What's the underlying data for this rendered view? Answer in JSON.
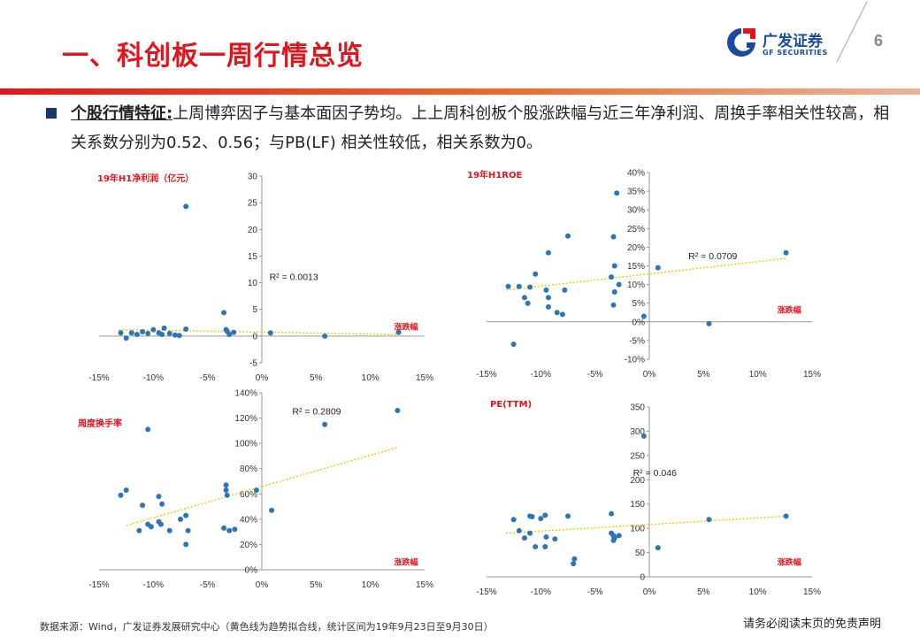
{
  "header": {
    "title": "一、科创板一周行情总览",
    "logo_name": "广发证券",
    "logo_en": "GF SECURITIES",
    "page_number": "6"
  },
  "body": {
    "highlight": "个股行情特征:",
    "text": "上周博弈因子与基本面因子势均。上上周科创板个股涨跌幅与近三年净利润、周换手率相关性较高，相关系数分别为0.52、0.56；与PB(LF) 相关性较低，相关系数为0。"
  },
  "colors": {
    "point": "#2e75b6",
    "trend": "#f2c80f",
    "label": "#e0161e",
    "brand": "#1b4a9a"
  },
  "chart_data": [
    {
      "type": "scatter",
      "title": "19年H1净利润（亿元）",
      "xlabel": "涨跌幅",
      "xlim": [
        -15,
        15
      ],
      "ylim": [
        -5,
        30
      ],
      "xticks": [
        -15,
        -10,
        -5,
        0,
        5,
        10,
        15
      ],
      "xtick_labels": [
        "-15%",
        "-10%",
        "-5%",
        "0%",
        "5%",
        "10%",
        "15%"
      ],
      "yticks": [
        -5,
        0,
        5,
        10,
        15,
        20,
        25,
        30
      ],
      "ytick_labels": [
        "-5",
        "0",
        "5",
        "10",
        "15",
        "20",
        "25",
        "30"
      ],
      "annotation": "R² = 0.0013",
      "trend": [
        [
          -13.2,
          1.2
        ],
        [
          12.6,
          0.3
        ]
      ],
      "points": [
        [
          -7,
          24.3
        ],
        [
          -3.5,
          4.4
        ],
        [
          -13,
          0.6
        ],
        [
          -12.5,
          -0.4
        ],
        [
          -12,
          0.6
        ],
        [
          -11.5,
          0.3
        ],
        [
          -11,
          0.8
        ],
        [
          -10.5,
          0.5
        ],
        [
          -10,
          1.2
        ],
        [
          -9.5,
          0.6
        ],
        [
          -9.2,
          0.3
        ],
        [
          -9,
          1.5
        ],
        [
          -8.5,
          0.5
        ],
        [
          -8,
          0.2
        ],
        [
          -7.6,
          0.1
        ],
        [
          -7,
          1.3
        ],
        [
          -3.2,
          0.9
        ],
        [
          -3,
          0.3
        ],
        [
          -2.6,
          0.7
        ],
        [
          -3.3,
          1.2
        ],
        [
          0.8,
          0.6
        ],
        [
          5.8,
          0.0
        ],
        [
          12.6,
          0.7
        ]
      ]
    },
    {
      "type": "scatter",
      "title": "19年H1ROE",
      "xlabel": "涨跌幅",
      "xlim": [
        -15,
        15
      ],
      "ylim": [
        -10,
        40
      ],
      "xticks": [
        -15,
        -10,
        -5,
        0,
        5,
        10,
        15
      ],
      "xtick_labels": [
        "-15%",
        "-10%",
        "-5%",
        "0%",
        "5%",
        "10%",
        "15%"
      ],
      "yticks": [
        -10,
        -5,
        0,
        5,
        10,
        15,
        20,
        25,
        30,
        35,
        40
      ],
      "ytick_labels": [
        "-10%",
        "-5%",
        "0%",
        "5%",
        "10%",
        "15%",
        "20%",
        "25%",
        "30%",
        "35%",
        "40%"
      ],
      "annotation": "R² = 0.0709",
      "trend": [
        [
          -13.2,
          8.5
        ],
        [
          12.6,
          17
        ]
      ],
      "points": [
        [
          -3,
          34.5
        ],
        [
          -3.3,
          22.8
        ],
        [
          -7.5,
          23
        ],
        [
          -9.3,
          18.5
        ],
        [
          -10.5,
          12.8
        ],
        [
          -13,
          9.5
        ],
        [
          -12,
          9.5
        ],
        [
          -11.5,
          6.5
        ],
        [
          -11.2,
          5
        ],
        [
          -11,
          9.3
        ],
        [
          -9.5,
          8.5
        ],
        [
          -9.3,
          6.5
        ],
        [
          -9.3,
          4
        ],
        [
          -8.5,
          2.5
        ],
        [
          -8,
          2
        ],
        [
          -7.8,
          8.5
        ],
        [
          -3.5,
          12
        ],
        [
          -3.2,
          15
        ],
        [
          -3.2,
          8
        ],
        [
          -3.3,
          4.5
        ],
        [
          -2.8,
          10
        ],
        [
          -0.5,
          1.5
        ],
        [
          0.8,
          14.5
        ],
        [
          5.5,
          -0.5
        ],
        [
          12.6,
          18.5
        ],
        [
          -12.5,
          -6
        ]
      ]
    },
    {
      "type": "scatter",
      "title": "周度换手率",
      "xlabel": "涨跌幅",
      "xlim": [
        -15,
        15
      ],
      "ylim": [
        0,
        1.4
      ],
      "xticks": [
        -15,
        -10,
        -5,
        0,
        5,
        10,
        15
      ],
      "xtick_labels": [
        "-15%",
        "-10%",
        "-5%",
        "0%",
        "5%",
        "10%",
        "15%"
      ],
      "yticks": [
        0,
        0.2,
        0.4,
        0.6,
        0.8,
        1.0,
        1.2,
        1.4
      ],
      "ytick_labels": [
        "0%",
        "20%",
        "40%",
        "60%",
        "80%",
        "100%",
        "120%",
        "140%"
      ],
      "annotation": "R² = 0.2809",
      "trend": [
        [
          -12.5,
          0.35
        ],
        [
          12.6,
          0.97
        ]
      ],
      "points": [
        [
          -10.5,
          1.11
        ],
        [
          12.5,
          1.26
        ],
        [
          5.8,
          1.15
        ],
        [
          -13,
          0.59
        ],
        [
          -12.5,
          0.63
        ],
        [
          -11,
          0.51
        ],
        [
          -10.5,
          0.36
        ],
        [
          -11.3,
          0.31
        ],
        [
          -10.2,
          0.34
        ],
        [
          -9.5,
          0.38
        ],
        [
          -9.5,
          0.58
        ],
        [
          -9.2,
          0.52
        ],
        [
          -9.3,
          0.36
        ],
        [
          -8.5,
          0.31
        ],
        [
          -7.5,
          0.4
        ],
        [
          -7,
          0.43
        ],
        [
          -7,
          0.2
        ],
        [
          -6.8,
          0.31
        ],
        [
          -3.3,
          0.67
        ],
        [
          -3.2,
          0.59
        ],
        [
          -3.3,
          0.63
        ],
        [
          -3.5,
          0.33
        ],
        [
          -3,
          0.31
        ],
        [
          -2.5,
          0.32
        ],
        [
          -0.5,
          0.63
        ],
        [
          0.9,
          0.47
        ]
      ]
    },
    {
      "type": "scatter",
      "title": "PE(TTM)",
      "xlabel": "涨跌幅",
      "xlim": [
        -15,
        15
      ],
      "ylim": [
        0,
        350
      ],
      "xticks": [
        -15,
        -10,
        -5,
        0,
        5,
        10,
        15
      ],
      "xtick_labels": [
        "-15%",
        "-10%",
        "-5%",
        "0%",
        "5%",
        "10%",
        "15%"
      ],
      "yticks": [
        0,
        50,
        100,
        150,
        200,
        250,
        300,
        350
      ],
      "ytick_labels": [
        "0",
        "50",
        "100",
        "150",
        "200",
        "250",
        "300",
        "350"
      ],
      "annotation": "R² = 0.046",
      "trend": [
        [
          -13.2,
          90
        ],
        [
          12.6,
          125
        ]
      ],
      "points": [
        [
          -0.5,
          290
        ],
        [
          -12.5,
          118
        ],
        [
          -12,
          95
        ],
        [
          -11.5,
          80
        ],
        [
          -11,
          125
        ],
        [
          -10.8,
          124
        ],
        [
          -11,
          90
        ],
        [
          -10.5,
          62
        ],
        [
          -10,
          120
        ],
        [
          -9.6,
          127
        ],
        [
          -9.5,
          82
        ],
        [
          -9.6,
          62
        ],
        [
          -8.7,
          78
        ],
        [
          -7.5,
          125
        ],
        [
          -7,
          27
        ],
        [
          -6.9,
          37
        ],
        [
          -3.5,
          90
        ],
        [
          -3.3,
          85
        ],
        [
          -3.2,
          80
        ],
        [
          -3.3,
          75
        ],
        [
          -2.8,
          85
        ],
        [
          -3.5,
          130
        ],
        [
          0.8,
          60
        ],
        [
          5.5,
          118
        ],
        [
          12.6,
          125
        ]
      ]
    }
  ],
  "footer": {
    "source": "数据来源：Wind，广发证券发展研究中心（黄色线为趋势拟合线，统计区间为19年9月23日至9月30日）",
    "disclaimer": "请务必阅读末页的免责声明"
  }
}
